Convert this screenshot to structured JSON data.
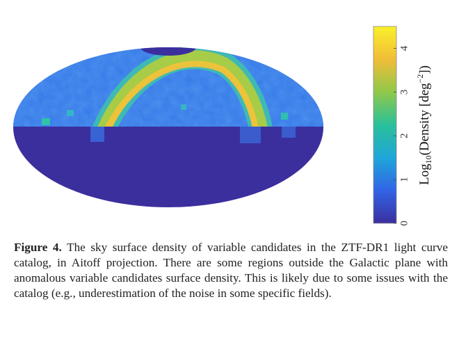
{
  "figure": {
    "projection": "Aitoff",
    "colorbar": {
      "label_prefix": "Log",
      "label_sub": "10",
      "label_mid": "(Density [deg",
      "label_sup": "−2",
      "label_suffix": "])",
      "ticks": [
        "0",
        "1",
        "2",
        "3",
        "4"
      ],
      "range": [
        0,
        4.5
      ],
      "colors": [
        "#3b2f9e",
        "#3264e6",
        "#1fa6d9",
        "#2ac09a",
        "#90c84a",
        "#f1bd38",
        "#f9f02a"
      ]
    },
    "colors": {
      "background_low": "#3b2f9e",
      "band_high": "#f2c23a",
      "band_mid": "#9acb4a"
    }
  },
  "caption": {
    "label": "Figure 4.",
    "text": " The sky surface density of variable candidates in the ZTF-DR1 light curve catalog, in Aitoff projection. There are some regions outside the Galactic plane with anomalous variable candidates surface density. This is likely due to some issues with the catalog (e.g., underestimation of the noise in some specific fields)."
  }
}
